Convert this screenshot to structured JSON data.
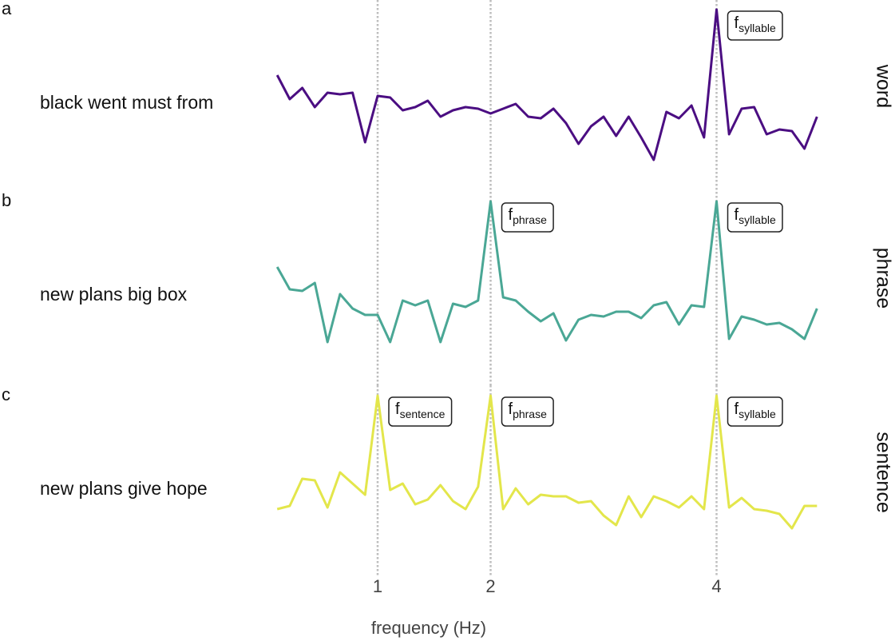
{
  "chart_data": [
    {
      "type": "line",
      "panel": "a",
      "label": "black went must from",
      "condition": "word",
      "color": "#4b0e82",
      "xlim": [
        0,
        5
      ],
      "xticks": [
        1,
        2,
        4
      ],
      "ylim": [
        0,
        100
      ],
      "x": [
        0.111,
        0.222,
        0.333,
        0.444,
        0.556,
        0.667,
        0.778,
        0.889,
        1,
        1.111,
        1.222,
        1.333,
        1.444,
        1.556,
        1.667,
        1.778,
        1.889,
        2,
        2.111,
        2.222,
        2.333,
        2.444,
        2.556,
        2.667,
        2.778,
        2.889,
        3,
        3.111,
        3.222,
        3.333,
        3.444,
        3.556,
        3.667,
        3.778,
        3.889,
        4,
        4.111,
        4.222,
        4.333,
        4.444,
        4.556,
        4.667,
        4.778,
        4.889
      ],
      "values": [
        59,
        44,
        51,
        39,
        48,
        47,
        48,
        17,
        46,
        45,
        37,
        39,
        43,
        33,
        37,
        39,
        38,
        35,
        38,
        41,
        33,
        32,
        38,
        29,
        16,
        27,
        33,
        21,
        33,
        20,
        6,
        36,
        32,
        40,
        20,
        100,
        22,
        38,
        39,
        22,
        25,
        24,
        13,
        33
      ],
      "annotations": [
        {
          "x": 4,
          "text": "f",
          "sub": "syllable"
        }
      ]
    },
    {
      "type": "line",
      "panel": "b",
      "label": "new plans big box",
      "condition": "phrase",
      "color": "#4aa795",
      "xlim": [
        0,
        5
      ],
      "xticks": [
        1,
        2,
        4
      ],
      "ylim": [
        0,
        100
      ],
      "x": [
        0.111,
        0.222,
        0.333,
        0.444,
        0.556,
        0.667,
        0.778,
        0.889,
        1,
        1.111,
        1.222,
        1.333,
        1.444,
        1.556,
        1.667,
        1.778,
        1.889,
        2,
        2.111,
        2.222,
        2.333,
        2.444,
        2.556,
        2.667,
        2.778,
        2.889,
        3,
        3.111,
        3.222,
        3.333,
        3.444,
        3.556,
        3.667,
        3.778,
        3.889,
        4,
        4.111,
        4.222,
        4.333,
        4.444,
        4.556,
        4.667,
        4.778,
        4.889
      ],
      "values": [
        59,
        45,
        44,
        49,
        12,
        42,
        33,
        29,
        29,
        12,
        38,
        35,
        38,
        12,
        36,
        34,
        38,
        100,
        40,
        38,
        31,
        25,
        30,
        13,
        26,
        29,
        28,
        31,
        31,
        27,
        35,
        37,
        23,
        35,
        34,
        100,
        14,
        28,
        26,
        23,
        24,
        20,
        14,
        33
      ],
      "annotations": [
        {
          "x": 2,
          "text": "f",
          "sub": "phrase"
        },
        {
          "x": 4,
          "text": "f",
          "sub": "syllable"
        }
      ]
    },
    {
      "type": "line",
      "panel": "c",
      "label": "new plans give hope",
      "condition": "sentence",
      "color": "#e3e64b",
      "xlim": [
        0,
        5
      ],
      "xticks": [
        1,
        2,
        4
      ],
      "ylim": [
        0,
        100
      ],
      "xlabel": "frequency (Hz)",
      "x": [
        0.111,
        0.222,
        0.333,
        0.444,
        0.556,
        0.667,
        0.778,
        0.889,
        1,
        1.111,
        1.222,
        1.333,
        1.444,
        1.556,
        1.667,
        1.778,
        1.889,
        2,
        2.111,
        2.222,
        2.333,
        2.444,
        2.556,
        2.667,
        2.778,
        2.889,
        3,
        3.111,
        3.222,
        3.333,
        3.444,
        3.556,
        3.667,
        3.778,
        3.889,
        4,
        4.111,
        4.222,
        4.333,
        4.444,
        4.556,
        4.667,
        4.778,
        4.889
      ],
      "values": [
        29,
        31,
        48,
        47,
        30,
        52,
        45,
        38,
        100,
        41,
        45,
        32,
        35,
        44,
        34,
        29,
        43,
        100,
        29,
        42,
        32,
        38,
        37,
        37,
        33,
        34,
        25,
        19,
        37,
        24,
        37,
        34,
        30,
        37,
        29,
        100,
        30,
        36,
        29,
        28,
        26,
        17,
        31,
        31
      ],
      "annotations": [
        {
          "x": 1,
          "text": "f",
          "sub": "sentence"
        },
        {
          "x": 2,
          "text": "f",
          "sub": "phrase"
        },
        {
          "x": 4,
          "text": "f",
          "sub": "syllable"
        }
      ]
    }
  ]
}
